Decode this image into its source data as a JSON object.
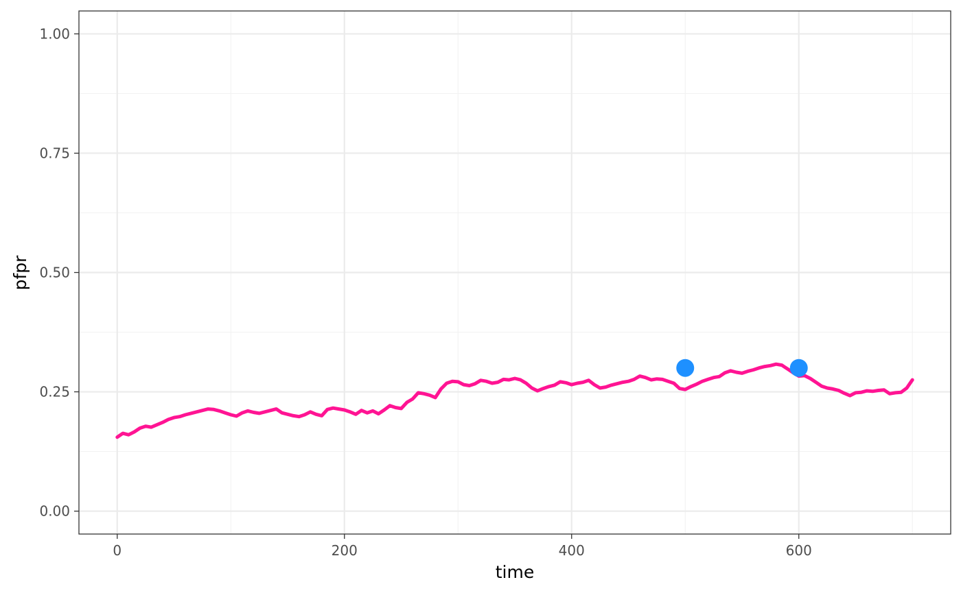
{
  "chart_data": {
    "type": "line",
    "xlabel": "time",
    "ylabel": "pfpr",
    "xlim": [
      -33.7,
      733.7
    ],
    "ylim": [
      -0.048,
      1.048
    ],
    "x_ticks": [
      0,
      200,
      400,
      600
    ],
    "x_tick_labels": [
      "0",
      "200",
      "400",
      "600"
    ],
    "y_ticks": [
      0,
      0.25,
      0.5,
      0.75,
      1.0
    ],
    "y_tick_labels": [
      "0.00",
      "0.25",
      "0.50",
      "0.75",
      "1.00"
    ],
    "grid": true,
    "line_color": "#ff1493",
    "point_color": "#1e90ff",
    "series": [
      {
        "type": "line",
        "points": [
          [
            0,
            0.155
          ],
          [
            5,
            0.163
          ],
          [
            10,
            0.16
          ],
          [
            15,
            0.166
          ],
          [
            20,
            0.174
          ],
          [
            25,
            0.178
          ],
          [
            30,
            0.176
          ],
          [
            35,
            0.181
          ],
          [
            40,
            0.186
          ],
          [
            45,
            0.192
          ],
          [
            50,
            0.196
          ],
          [
            55,
            0.198
          ],
          [
            60,
            0.202
          ],
          [
            65,
            0.205
          ],
          [
            70,
            0.208
          ],
          [
            75,
            0.211
          ],
          [
            80,
            0.214
          ],
          [
            85,
            0.213
          ],
          [
            90,
            0.21
          ],
          [
            95,
            0.206
          ],
          [
            100,
            0.202
          ],
          [
            105,
            0.199
          ],
          [
            110,
            0.206
          ],
          [
            115,
            0.21
          ],
          [
            120,
            0.207
          ],
          [
            125,
            0.205
          ],
          [
            130,
            0.208
          ],
          [
            135,
            0.211
          ],
          [
            140,
            0.214
          ],
          [
            145,
            0.206
          ],
          [
            150,
            0.203
          ],
          [
            155,
            0.2
          ],
          [
            160,
            0.198
          ],
          [
            165,
            0.202
          ],
          [
            170,
            0.208
          ],
          [
            175,
            0.203
          ],
          [
            180,
            0.2
          ],
          [
            185,
            0.213
          ],
          [
            190,
            0.216
          ],
          [
            195,
            0.214
          ],
          [
            200,
            0.212
          ],
          [
            205,
            0.208
          ],
          [
            210,
            0.203
          ],
          [
            215,
            0.211
          ],
          [
            220,
            0.206
          ],
          [
            225,
            0.21
          ],
          [
            230,
            0.204
          ],
          [
            235,
            0.212
          ],
          [
            240,
            0.221
          ],
          [
            245,
            0.217
          ],
          [
            250,
            0.215
          ],
          [
            255,
            0.228
          ],
          [
            260,
            0.235
          ],
          [
            265,
            0.248
          ],
          [
            270,
            0.246
          ],
          [
            275,
            0.243
          ],
          [
            280,
            0.238
          ],
          [
            285,
            0.256
          ],
          [
            290,
            0.268
          ],
          [
            295,
            0.272
          ],
          [
            300,
            0.271
          ],
          [
            305,
            0.265
          ],
          [
            310,
            0.263
          ],
          [
            315,
            0.267
          ],
          [
            320,
            0.274
          ],
          [
            325,
            0.272
          ],
          [
            330,
            0.268
          ],
          [
            335,
            0.27
          ],
          [
            340,
            0.276
          ],
          [
            345,
            0.275
          ],
          [
            350,
            0.278
          ],
          [
            355,
            0.275
          ],
          [
            360,
            0.268
          ],
          [
            365,
            0.258
          ],
          [
            370,
            0.252
          ],
          [
            375,
            0.257
          ],
          [
            380,
            0.261
          ],
          [
            385,
            0.264
          ],
          [
            390,
            0.271
          ],
          [
            395,
            0.269
          ],
          [
            400,
            0.265
          ],
          [
            405,
            0.268
          ],
          [
            410,
            0.27
          ],
          [
            415,
            0.274
          ],
          [
            420,
            0.265
          ],
          [
            425,
            0.258
          ],
          [
            430,
            0.26
          ],
          [
            435,
            0.264
          ],
          [
            440,
            0.267
          ],
          [
            445,
            0.27
          ],
          [
            450,
            0.272
          ],
          [
            455,
            0.276
          ],
          [
            460,
            0.283
          ],
          [
            465,
            0.28
          ],
          [
            470,
            0.275
          ],
          [
            475,
            0.277
          ],
          [
            480,
            0.276
          ],
          [
            485,
            0.272
          ],
          [
            490,
            0.268
          ],
          [
            495,
            0.257
          ],
          [
            500,
            0.255
          ],
          [
            505,
            0.261
          ],
          [
            510,
            0.266
          ],
          [
            515,
            0.272
          ],
          [
            520,
            0.276
          ],
          [
            525,
            0.28
          ],
          [
            530,
            0.282
          ],
          [
            535,
            0.29
          ],
          [
            540,
            0.294
          ],
          [
            545,
            0.291
          ],
          [
            550,
            0.289
          ],
          [
            555,
            0.293
          ],
          [
            560,
            0.296
          ],
          [
            565,
            0.3
          ],
          [
            570,
            0.303
          ],
          [
            575,
            0.305
          ],
          [
            580,
            0.308
          ],
          [
            585,
            0.306
          ],
          [
            590,
            0.298
          ],
          [
            595,
            0.29
          ],
          [
            600,
            0.283
          ],
          [
            605,
            0.284
          ],
          [
            610,
            0.278
          ],
          [
            615,
            0.27
          ],
          [
            620,
            0.262
          ],
          [
            625,
            0.258
          ],
          [
            630,
            0.256
          ],
          [
            635,
            0.253
          ],
          [
            640,
            0.247
          ],
          [
            645,
            0.242
          ],
          [
            650,
            0.248
          ],
          [
            655,
            0.249
          ],
          [
            660,
            0.252
          ],
          [
            665,
            0.251
          ],
          [
            670,
            0.253
          ],
          [
            675,
            0.254
          ],
          [
            680,
            0.246
          ],
          [
            685,
            0.248
          ],
          [
            690,
            0.249
          ],
          [
            695,
            0.258
          ],
          [
            700,
            0.275
          ]
        ]
      },
      {
        "type": "scatter",
        "points": [
          [
            500,
            0.3
          ],
          [
            600,
            0.3
          ]
        ]
      }
    ]
  }
}
